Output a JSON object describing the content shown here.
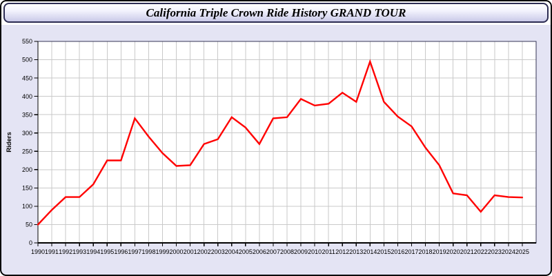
{
  "title_bar": {
    "title": "California Triple Crown Ride History GRAND TOUR",
    "border_color": "#2b2b52",
    "gradient_top": "#ffffff",
    "gradient_bottom": "#c9c9e8"
  },
  "page": {
    "background": "#e4e4f4",
    "border_color": "#000000"
  },
  "chart_data": {
    "type": "line",
    "title": "California Triple Crown Ride History GRAND TOUR",
    "xlabel": "",
    "ylabel": "Riders",
    "x": [
      1990,
      1991,
      1992,
      1993,
      1994,
      1995,
      1996,
      1997,
      1998,
      1999,
      2000,
      2001,
      2002,
      2003,
      2004,
      2005,
      2006,
      2007,
      2008,
      2009,
      2010,
      2011,
      2012,
      2013,
      2014,
      2015,
      2016,
      2017,
      2018,
      2019,
      2020,
      2021,
      2022,
      2023,
      2024,
      2025
    ],
    "series": [
      {
        "name": "Riders",
        "values": [
          50,
          90,
          125,
          125,
          160,
          225,
          225,
          340,
          290,
          245,
          210,
          212,
          270,
          283,
          343,
          315,
          270,
          340,
          343,
          393,
          375,
          380,
          410,
          385,
          495,
          385,
          345,
          318,
          260,
          212,
          135,
          130,
          85,
          130,
          125,
          124
        ]
      }
    ],
    "xlim": [
      1990,
      2026
    ],
    "ylim": [
      0,
      550
    ],
    "yticks": [
      0,
      50,
      100,
      150,
      200,
      250,
      300,
      350,
      400,
      450,
      500,
      550
    ],
    "grid": true,
    "legend_position": "none",
    "line_color": "#ff0000",
    "grid_color": "#c9c9c9",
    "axis_color": "#000000",
    "plot_bg": "#ffffff"
  }
}
